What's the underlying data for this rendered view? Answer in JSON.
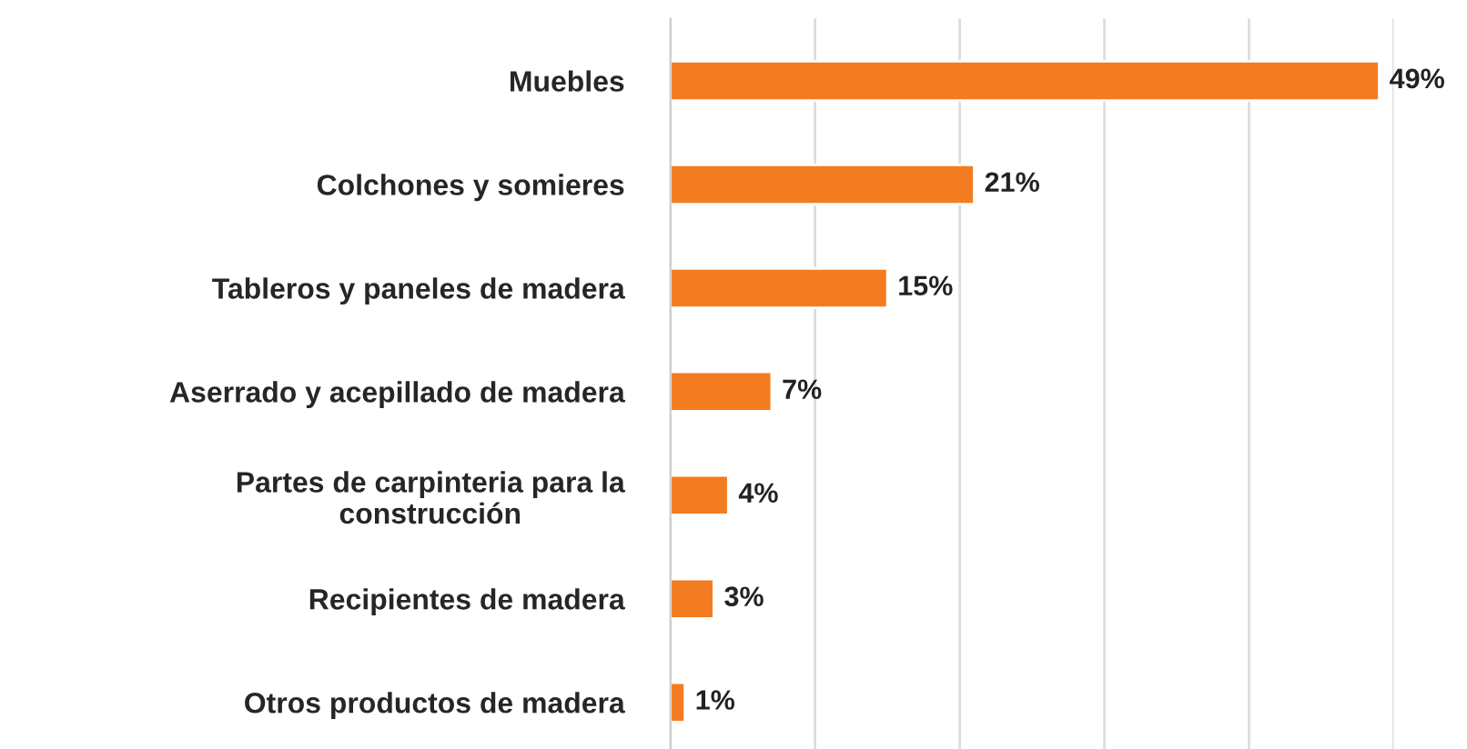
{
  "chart_data": {
    "type": "bar",
    "orientation": "horizontal",
    "categories": [
      "Muebles",
      "Colchones y somieres",
      "Tableros y paneles de madera",
      "Aserrado y acepillado de madera",
      "Partes de carpinteria para la\nconstrucción",
      "Recipientes de madera",
      "Otros productos de madera"
    ],
    "values": [
      49,
      21,
      15,
      7,
      4,
      3,
      1
    ],
    "value_labels": [
      "49%",
      "21%",
      "15%",
      "7%",
      "4%",
      "3%",
      "1%"
    ],
    "color": "#f47c20",
    "xlim": [
      0,
      50
    ],
    "xticks": [
      {
        "value": 0,
        "label": null
      },
      {
        "value": 10,
        "label": null
      },
      {
        "value": 20,
        "label": null
      },
      {
        "value": 30,
        "label": null
      },
      {
        "value": 40,
        "label": null
      },
      {
        "value": 50,
        "label": null
      }
    ],
    "grid": "x",
    "tick_labels": "y",
    "legend": false
  }
}
